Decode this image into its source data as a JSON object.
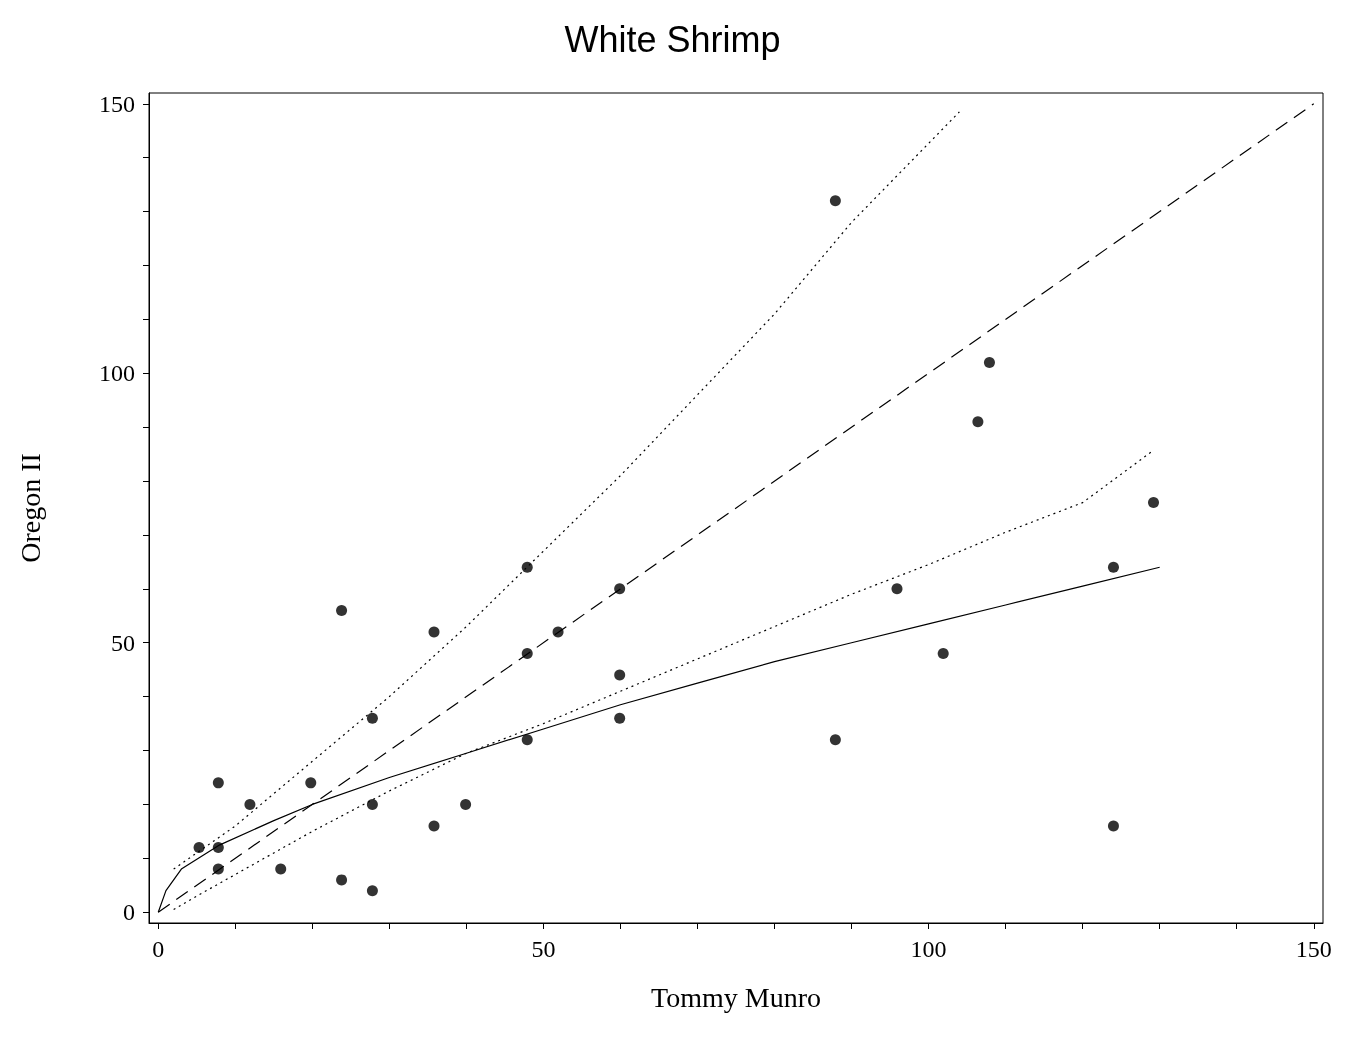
{
  "chart_data": {
    "type": "scatter",
    "title": "White Shrimp",
    "xlabel": "Tommy Munro",
    "ylabel": "Oregon II",
    "xlim": [
      -1.2,
      151.2
    ],
    "ylim": [
      -2,
      152
    ],
    "xticks": [
      0,
      {
        "value": 10,
        "label": null
      },
      {
        "value": 20,
        "label": null
      },
      {
        "value": 30,
        "label": null
      },
      {
        "value": 40,
        "label": null
      },
      50,
      {
        "value": 60,
        "label": null
      },
      {
        "value": 70,
        "label": null
      },
      {
        "value": 80,
        "label": null
      },
      {
        "value": 90,
        "label": null
      },
      100,
      {
        "value": 110,
        "label": null
      },
      {
        "value": 120,
        "label": null
      },
      {
        "value": 130,
        "label": null
      },
      {
        "value": 140,
        "label": null
      },
      150
    ],
    "yticks": [
      0,
      {
        "value": 10,
        "label": null
      },
      {
        "value": 20,
        "label": null
      },
      {
        "value": 30,
        "label": null
      },
      {
        "value": 40,
        "label": null
      },
      50,
      {
        "value": 60,
        "label": null
      },
      {
        "value": 70,
        "label": null
      },
      {
        "value": 80,
        "label": null
      },
      {
        "value": 90,
        "label": null
      },
      100,
      {
        "value": 110,
        "label": null
      },
      {
        "value": 120,
        "label": null
      },
      {
        "value": 130,
        "label": null
      },
      {
        "value": 140,
        "label": null
      },
      150
    ],
    "grid": false,
    "series": [
      {
        "color": "#000000",
        "marker": "circle",
        "x": [
          5.3,
          7.8,
          7.8,
          7.8,
          11.9,
          15.9,
          19.8,
          23.8,
          23.8,
          27.8,
          27.8,
          27.8,
          35.8,
          35.8,
          39.9,
          47.9,
          47.9,
          47.9,
          51.9,
          59.9,
          59.9,
          59.9,
          87.9,
          87.9,
          95.9,
          101.9,
          106.4,
          107.9,
          124,
          124,
          129.2
        ],
        "values": [
          12,
          24,
          12,
          8,
          20,
          8,
          24,
          56,
          6,
          36,
          20,
          4,
          52,
          16,
          20,
          64,
          48,
          32,
          52,
          60,
          44,
          36,
          132,
          32,
          60,
          48,
          91,
          102,
          64,
          16,
          76
        ]
      },
      {
        "type": "line",
        "color": "#000000",
        "line_style": "dashed",
        "marker": "none",
        "x": [
          0,
          150
        ],
        "values": [
          0,
          150
        ]
      },
      {
        "type": "line",
        "color": "#000000",
        "line_style": "solid",
        "marker": "none",
        "x": [
          0,
          1,
          3,
          8,
          15,
          20,
          30,
          40,
          50,
          60,
          70,
          80,
          90,
          100,
          110,
          120,
          130
        ],
        "values": [
          0,
          4,
          8,
          12.5,
          17,
          20,
          25,
          29.5,
          34,
          38.5,
          42.5,
          46.5,
          50,
          53.5,
          57,
          60.5,
          64
        ]
      },
      {
        "type": "line",
        "color": "#000000",
        "line_style": "dotted",
        "marker": "none",
        "x": [
          2,
          5,
          10,
          20,
          30,
          40,
          50,
          60,
          70,
          80,
          90,
          104
        ],
        "values": [
          8,
          11,
          16,
          28,
          40,
          53,
          67,
          81,
          96,
          111,
          128,
          148.5
        ]
      },
      {
        "type": "line",
        "color": "#000000",
        "line_style": "dotted",
        "marker": "none",
        "x": [
          2,
          5,
          10,
          20,
          30,
          40,
          50,
          60,
          70,
          80,
          90,
          100,
          110,
          120,
          129
        ],
        "values": [
          0.5,
          3,
          7,
          15,
          22.5,
          29.5,
          35,
          41,
          47,
          53,
          59,
          64.5,
          70.5,
          76,
          85.5
        ]
      }
    ]
  }
}
